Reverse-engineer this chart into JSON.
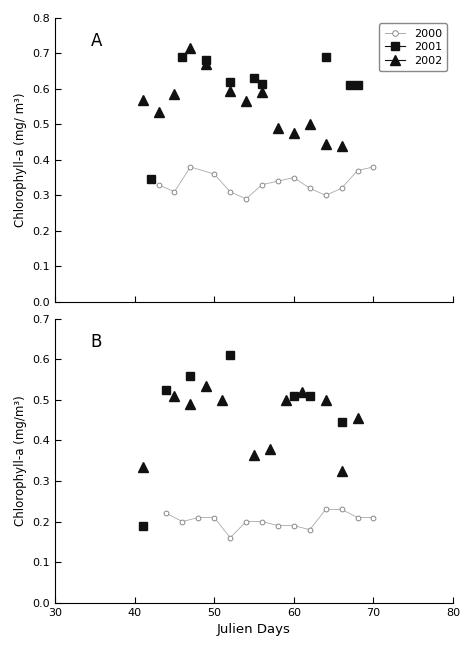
{
  "panel_A": {
    "label": "A",
    "ylim": [
      0,
      0.8
    ],
    "yticks": [
      0,
      0.1,
      0.2,
      0.3,
      0.4,
      0.5,
      0.6,
      0.7,
      0.8
    ],
    "ylabel": "Chlorophyll-a (mg/ m³)",
    "series_2000": {
      "x": [
        43,
        45,
        47,
        50,
        52,
        54,
        56,
        58,
        60,
        62,
        64,
        66,
        68,
        70
      ],
      "y": [
        0.33,
        0.31,
        0.38,
        0.36,
        0.31,
        0.29,
        0.33,
        0.34,
        0.35,
        0.32,
        0.3,
        0.32,
        0.37,
        0.38
      ]
    },
    "series_2001": {
      "x": [
        42,
        46,
        49,
        52,
        55,
        56,
        64,
        67,
        68
      ],
      "y": [
        0.345,
        0.69,
        0.68,
        0.62,
        0.63,
        0.615,
        0.69,
        0.61,
        0.61
      ]
    },
    "series_2002": {
      "x": [
        41,
        43,
        45,
        47,
        49,
        52,
        54,
        56,
        58,
        60,
        62,
        64,
        66
      ],
      "y": [
        0.57,
        0.535,
        0.585,
        0.715,
        0.67,
        0.595,
        0.565,
        0.59,
        0.49,
        0.475,
        0.5,
        0.445,
        0.44
      ]
    }
  },
  "panel_B": {
    "label": "B",
    "ylim": [
      0,
      0.7
    ],
    "yticks": [
      0,
      0.1,
      0.2,
      0.3,
      0.4,
      0.5,
      0.6,
      0.7
    ],
    "ylabel": "Chlorophyll-a (mg/m³)",
    "xlabel": "Julien Days",
    "series_2000": {
      "x": [
        44,
        46,
        48,
        50,
        52,
        54,
        56,
        58,
        60,
        62,
        64,
        66,
        68,
        70
      ],
      "y": [
        0.22,
        0.2,
        0.21,
        0.21,
        0.16,
        0.2,
        0.2,
        0.19,
        0.19,
        0.18,
        0.23,
        0.23,
        0.21,
        0.21
      ]
    },
    "series_2001": {
      "x": [
        41,
        44,
        47,
        52,
        60,
        62,
        66
      ],
      "y": [
        0.19,
        0.525,
        0.56,
        0.61,
        0.51,
        0.51,
        0.445
      ]
    },
    "series_2002": {
      "x": [
        41,
        45,
        47,
        49,
        51,
        55,
        57,
        59,
        61,
        64,
        66,
        68
      ],
      "y": [
        0.335,
        0.51,
        0.49,
        0.535,
        0.5,
        0.365,
        0.38,
        0.5,
        0.52,
        0.5,
        0.325,
        0.455
      ]
    }
  },
  "xlim": [
    30,
    80
  ],
  "xticks": [
    30,
    40,
    50,
    60,
    70,
    80
  ],
  "legend_labels": [
    "2000",
    "2001",
    "2002"
  ]
}
